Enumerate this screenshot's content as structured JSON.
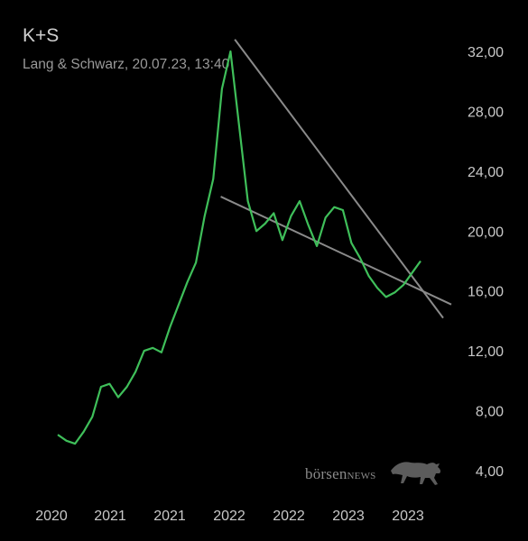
{
  "header": {
    "title": "K+S",
    "subtitle": "Lang & Schwarz, 20.07.23, 13:40"
  },
  "watermark": {
    "text_lower": "börsen",
    "text_caps": "news",
    "icon": "bull-icon"
  },
  "colors": {
    "background": "#000000",
    "price_line": "#3fbf5a",
    "trend_lines": "#8a8a8a",
    "axis_text": "#c8c8c8"
  },
  "chart_data": {
    "type": "line",
    "title": "K+S",
    "subtitle": "Lang & Schwarz, 20.07.23, 13:40",
    "x_tick_labels": [
      "2020",
      "2021",
      "2021",
      "2022",
      "2022",
      "2023",
      "2023"
    ],
    "y_tick_labels": [
      "4,00",
      "8,00",
      "12,00",
      "16,00",
      "20,00",
      "24,00",
      "28,00",
      "32,00"
    ],
    "y_ticks": [
      4,
      8,
      12,
      16,
      20,
      24,
      28,
      32
    ],
    "xlim": [
      "2020-01",
      "2023-07"
    ],
    "ylim": [
      4,
      32
    ],
    "grid": false,
    "legend": "none",
    "series": [
      {
        "x": [
          "2020-01",
          "2020-02",
          "2020-03",
          "2020-04",
          "2020-05",
          "2020-06",
          "2020-07",
          "2020-08",
          "2020-09",
          "2020-10",
          "2020-11",
          "2020-12",
          "2021-01",
          "2021-02",
          "2021-03",
          "2021-04",
          "2021-05",
          "2021-06",
          "2021-07",
          "2021-08",
          "2021-09",
          "2021-10",
          "2021-11",
          "2021-12",
          "2022-01",
          "2022-02",
          "2022-03",
          "2022-04",
          "2022-05",
          "2022-06",
          "2022-07",
          "2022-08",
          "2022-09",
          "2022-10",
          "2022-11",
          "2022-12",
          "2023-01",
          "2023-02",
          "2023-03",
          "2023-04",
          "2023-05",
          "2023-06",
          "2023-07"
        ],
        "values": [
          6.4,
          6.0,
          5.8,
          6.6,
          7.6,
          9.6,
          9.8,
          8.9,
          9.6,
          10.6,
          12.0,
          12.2,
          11.9,
          13.6,
          15.1,
          16.6,
          17.9,
          21.0,
          23.5,
          29.5,
          32.0,
          27.0,
          22.0,
          20.0,
          20.5,
          21.2,
          19.4,
          21.0,
          22.0,
          20.4,
          19.0,
          20.9,
          21.6,
          21.4,
          19.2,
          18.2,
          17.0,
          16.2,
          15.6,
          15.9,
          16.4,
          17.2,
          18.0
        ]
      }
    ],
    "trend_lines": [
      {
        "from": [
          "2021-12",
          32.8
        ],
        "to": [
          "2023-07",
          14.2
        ]
      },
      {
        "from": [
          "2021-11",
          22.3
        ],
        "to": [
          "2023-07",
          15.1
        ]
      }
    ]
  }
}
